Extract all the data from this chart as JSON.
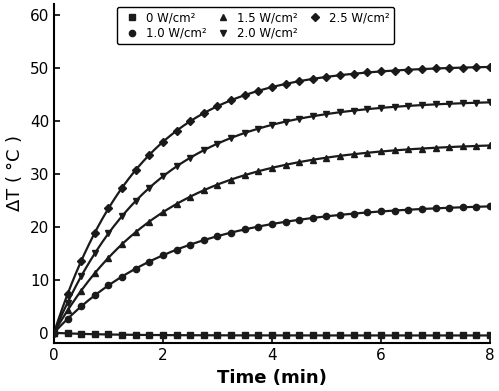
{
  "title": "",
  "xlabel": "Time (min)",
  "xlim": [
    0,
    8
  ],
  "ylim": [
    -2,
    62
  ],
  "yticks": [
    0,
    10,
    20,
    30,
    40,
    50,
    60
  ],
  "xticks": [
    0,
    2,
    4,
    6,
    8
  ],
  "series": [
    {
      "label": "0 W/cm²",
      "marker": "s",
      "saturate": -0.5,
      "tau": 1.0,
      "color": "#1a1a1a"
    },
    {
      "label": "1.0 W/cm²",
      "marker": "o",
      "saturate": 24.5,
      "tau": 2.2,
      "color": "#1a1a1a"
    },
    {
      "label": "1.5 W/cm²",
      "marker": "^",
      "saturate": 36.0,
      "tau": 2.0,
      "color": "#1a1a1a"
    },
    {
      "label": "2.0 W/cm²",
      "marker": "v",
      "saturate": 44.0,
      "tau": 1.8,
      "color": "#1a1a1a"
    },
    {
      "label": "2.5 W/cm²",
      "marker": "D",
      "saturate": 50.5,
      "tau": 1.6,
      "color": "#1a1a1a"
    }
  ],
  "n_points": 33,
  "background_color": "#ffffff",
  "legend_fontsize": 8.5,
  "axis_label_fontsize": 13,
  "tick_fontsize": 11,
  "markersize": 4.5,
  "linewidth": 1.6
}
